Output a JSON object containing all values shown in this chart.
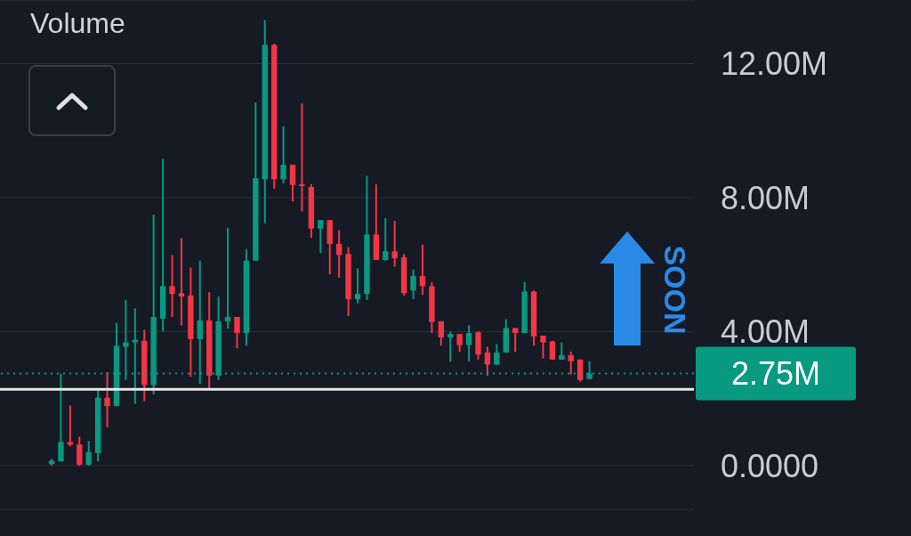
{
  "chart_data": {
    "type": "candlestick",
    "title": "Volume",
    "categories": [
      null,
      null,
      null,
      null,
      null,
      null,
      null,
      null,
      null,
      null,
      null,
      null,
      null,
      null,
      null,
      null,
      null,
      null,
      null,
      null,
      null,
      null,
      null,
      null,
      null,
      null,
      null,
      null,
      null,
      null,
      null,
      null,
      null,
      null,
      null,
      null,
      null,
      null,
      null,
      null,
      null,
      null,
      null,
      null,
      null,
      null,
      null,
      null,
      null,
      null,
      null,
      null,
      null,
      null,
      null,
      null,
      null,
      null,
      null
    ],
    "ohlc": [
      [
        0.05,
        0.2,
        0.0,
        0.15
      ],
      [
        0.13,
        2.74,
        0.13,
        0.71
      ],
      [
        0.71,
        1.8,
        0.58,
        0.63
      ],
      [
        0.63,
        0.86,
        0.0,
        0.03
      ],
      [
        0.03,
        0.74,
        0.0,
        0.41
      ],
      [
        0.38,
        2.31,
        0.13,
        2.03
      ],
      [
        2.03,
        2.79,
        1.14,
        1.78
      ],
      [
        1.78,
        4.26,
        1.78,
        3.58
      ],
      [
        3.55,
        4.95,
        2.56,
        3.68
      ],
      [
        3.68,
        4.7,
        1.85,
        3.76
      ],
      [
        3.73,
        4.06,
        1.93,
        2.41
      ],
      [
        2.41,
        7.49,
        2.13,
        4.44
      ],
      [
        4.39,
        9.16,
        4.01,
        5.36
      ],
      [
        5.36,
        6.29,
        4.44,
        5.13
      ],
      [
        5.15,
        6.8,
        4.19,
        5.05
      ],
      [
        5.08,
        5.91,
        2.66,
        3.78
      ],
      [
        3.78,
        6.12,
        2.44,
        4.34
      ],
      [
        4.34,
        5.18,
        2.28,
        2.69
      ],
      [
        2.69,
        5.05,
        2.56,
        4.31
      ],
      [
        4.31,
        7.1,
        4.09,
        4.44
      ],
      [
        4.44,
        4.44,
        3.5,
        3.96
      ],
      [
        3.96,
        6.47,
        3.58,
        6.12
      ],
      [
        6.12,
        10.84,
        6.12,
        8.58
      ],
      [
        8.55,
        13.3,
        7.23,
        12.56
      ],
      [
        12.56,
        12.6,
        8.27,
        8.55
      ],
      [
        8.55,
        10.13,
        8.43,
        8.98
      ],
      [
        8.98,
        8.98,
        7.89,
        8.38
      ],
      [
        8.4,
        10.81,
        7.59,
        8.35
      ],
      [
        8.32,
        8.4,
        6.8,
        7.08
      ],
      [
        7.08,
        7.33,
        6.35,
        7.33
      ],
      [
        7.33,
        7.33,
        5.71,
        6.62
      ],
      [
        6.62,
        7.03,
        5.61,
        6.29
      ],
      [
        6.32,
        6.52,
        4.47,
        4.97
      ],
      [
        4.97,
        5.89,
        4.85,
        5.13
      ],
      [
        5.13,
        8.65,
        4.95,
        6.9
      ],
      [
        6.9,
        8.4,
        6.14,
        6.14
      ],
      [
        6.14,
        7.39,
        6.12,
        6.4
      ],
      [
        6.4,
        7.31,
        5.94,
        6.19
      ],
      [
        6.22,
        6.32,
        5.08,
        5.15
      ],
      [
        5.23,
        5.86,
        4.97,
        5.66
      ],
      [
        5.66,
        6.6,
        5.1,
        5.36
      ],
      [
        5.36,
        5.48,
        3.96,
        4.29
      ],
      [
        4.31,
        4.31,
        3.58,
        3.83
      ],
      [
        3.83,
        4.01,
        3.1,
        3.93
      ],
      [
        3.93,
        3.93,
        3.4,
        3.6
      ],
      [
        3.6,
        4.19,
        3.12,
        3.96
      ],
      [
        3.98,
        4.01,
        3.17,
        3.32
      ],
      [
        3.38,
        3.55,
        2.69,
        3.02
      ],
      [
        3.02,
        3.63,
        3.02,
        3.38
      ],
      [
        3.38,
        4.37,
        3.38,
        4.11
      ],
      [
        4.11,
        4.11,
        3.4,
        3.96
      ],
      [
        3.96,
        5.48,
        3.96,
        5.2
      ],
      [
        5.2,
        5.23,
        3.58,
        3.86
      ],
      [
        3.88,
        3.88,
        3.2,
        3.68
      ],
      [
        3.71,
        3.73,
        3.17,
        3.17
      ],
      [
        3.17,
        3.68,
        3.17,
        3.3
      ],
      [
        3.3,
        3.4,
        2.72,
        3.12
      ],
      [
        3.17,
        3.17,
        2.51,
        2.56
      ],
      [
        2.59,
        3.12,
        2.59,
        2.75
      ]
    ],
    "colors": [
      "#089981",
      "#089981",
      "#f23645",
      "#f23645",
      "#089981",
      "#089981",
      "#f23645",
      "#089981",
      "#089981",
      "#089981",
      "#f23645",
      "#089981",
      "#089981",
      "#f23645",
      "#f23645",
      "#f23645",
      "#089981",
      "#f23645",
      "#089981",
      "#089981",
      "#f23645",
      "#089981",
      "#089981",
      "#089981",
      "#f23645",
      "#089981",
      "#f23645",
      "#f23645",
      "#f23645",
      "#089981",
      "#f23645",
      "#f23645",
      "#f23645",
      "#089981",
      "#089981",
      "#f23645",
      "#089981",
      "#f23645",
      "#f23645",
      "#089981",
      "#f23645",
      "#f23645",
      "#f23645",
      "#089981",
      "#f23645",
      "#089981",
      "#f23645",
      "#f23645",
      "#089981",
      "#089981",
      "#f23645",
      "#089981",
      "#f23645",
      "#f23645",
      "#f23645",
      "#089981",
      "#f23645",
      "#f23645",
      "#089981"
    ],
    "ylim": [
      -1.3,
      13.9
    ],
    "yticks": [
      {
        "value": 0,
        "label": "0.0000"
      },
      {
        "value": 4,
        "label": "4.00M"
      },
      {
        "value": 8,
        "label": "8.00M"
      },
      {
        "value": 12,
        "label": "12.00M"
      }
    ],
    "grid": "y",
    "ref_lines": [
      {
        "axis": "y",
        "value": 2.75,
        "label": "2.75M",
        "color": "#089981",
        "line_style": "dotted"
      },
      {
        "axis": "y",
        "value": 2.28,
        "color": "#e6e6e6",
        "line_style": "solid"
      }
    ],
    "annotations": [
      "SOON"
    ]
  }
}
